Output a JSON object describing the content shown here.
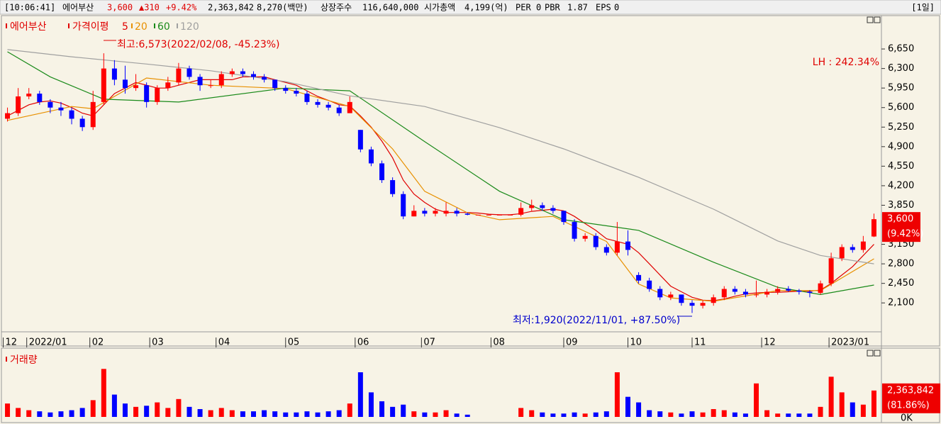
{
  "header": {
    "items": [
      "[10:06:41]",
      "에어부산",
      "3,600",
      "▲310",
      "+9.42%",
      "2,363,842",
      "8,270(백만)",
      "상장주수",
      "116,640,000",
      "시가총액",
      "4,199(억)",
      "PER",
      "0",
      "PBR",
      "1.87",
      "EPS",
      "0"
    ],
    "period": "[1일]"
  },
  "chart_data": [
    {
      "type": "candlestick",
      "title": "에어부산",
      "ma_title": "가격이평",
      "xlim": [
        -0.5,
        81.5
      ],
      "xticks": [
        {
          "value": -0.4,
          "label": "12"
        },
        {
          "value": 1.8,
          "label": "2022/01"
        },
        {
          "value": 7.7,
          "label": "02"
        },
        {
          "value": 13.3,
          "label": "03"
        },
        {
          "value": 19.5,
          "label": "04"
        },
        {
          "value": 26.0,
          "label": "05"
        },
        {
          "value": 32.5,
          "label": "06"
        },
        {
          "value": 38.7,
          "label": "07"
        },
        {
          "value": 45.2,
          "label": "08"
        },
        {
          "value": 52.0,
          "label": "09"
        },
        {
          "value": 58.0,
          "label": "10"
        },
        {
          "value": 64.0,
          "label": "11"
        },
        {
          "value": 70.5,
          "label": "12"
        },
        {
          "value": 76.8,
          "label": "2023/01"
        }
      ],
      "ylim": [
        1620,
        7210
      ],
      "yticks": [
        {
          "value": 2100,
          "label": "2,100"
        },
        {
          "value": 2450,
          "label": "2,450"
        },
        {
          "value": 2800,
          "label": "2,800"
        },
        {
          "value": 3150,
          "label": "3,150"
        },
        {
          "value": 3850,
          "label": "3,850"
        },
        {
          "value": 4200,
          "label": "4,200"
        },
        {
          "value": 4550,
          "label": "4,550"
        },
        {
          "value": 4900,
          "label": "4,900"
        },
        {
          "value": 5250,
          "label": "5,250"
        },
        {
          "value": 5600,
          "label": "5,600"
        },
        {
          "value": 5950,
          "label": "5,950"
        },
        {
          "value": 6300,
          "label": "6,300"
        },
        {
          "value": 6650,
          "label": "6,650"
        }
      ],
      "grid": false,
      "up_color": "#ff0000",
      "down_color": "#0000ff",
      "ohlc": [
        [
          5400,
          5600,
          5350,
          5500
        ],
        [
          5500,
          5950,
          5450,
          5800
        ],
        [
          5800,
          5950,
          5750,
          5850
        ],
        [
          5850,
          5900,
          5650,
          5700
        ],
        [
          5700,
          5750,
          5500,
          5600
        ],
        [
          5600,
          5700,
          5450,
          5550
        ],
        [
          5550,
          5600,
          5300,
          5400
        ],
        [
          5400,
          5450,
          5180,
          5250
        ],
        [
          5250,
          5900,
          5200,
          5700
        ],
        [
          5700,
          6573,
          5650,
          6300
        ],
        [
          6300,
          6450,
          6000,
          6100
        ],
        [
          6100,
          6350,
          5850,
          5950
        ],
        [
          5950,
          6200,
          5900,
          6000
        ],
        [
          6000,
          6050,
          5600,
          5700
        ],
        [
          5700,
          6000,
          5650,
          5950
        ],
        [
          5950,
          6150,
          5900,
          6050
        ],
        [
          6050,
          6400,
          6000,
          6300
        ],
        [
          6300,
          6350,
          6100,
          6150
        ],
        [
          6150,
          6200,
          5900,
          6000
        ],
        [
          6000,
          6100,
          5950,
          6000
        ],
        [
          6000,
          6250,
          5950,
          6200
        ],
        [
          6200,
          6300,
          6150,
          6250
        ],
        [
          6250,
          6300,
          6150,
          6200
        ],
        [
          6200,
          6250,
          6100,
          6150
        ],
        [
          6150,
          6200,
          6050,
          6100
        ],
        [
          6100,
          6100,
          5900,
          5950
        ],
        [
          5950,
          6000,
          5850,
          5900
        ],
        [
          5900,
          5950,
          5800,
          5850
        ],
        [
          5850,
          5900,
          5650,
          5700
        ],
        [
          5700,
          5750,
          5600,
          5650
        ],
        [
          5650,
          5700,
          5550,
          5600
        ],
        [
          5600,
          5650,
          5450,
          5500
        ],
        [
          5500,
          5800,
          5500,
          5700
        ],
        [
          5200,
          5200,
          4800,
          4850
        ],
        [
          4850,
          4900,
          4550,
          4600
        ],
        [
          4600,
          4650,
          4250,
          4300
        ],
        [
          4300,
          4350,
          4000,
          4050
        ],
        [
          4050,
          4100,
          3600,
          3650
        ],
        [
          3650,
          3850,
          3650,
          3750
        ],
        [
          3750,
          3800,
          3650,
          3700
        ],
        [
          3700,
          3800,
          3650,
          3750
        ],
        [
          3700,
          3900,
          3650,
          3750
        ],
        [
          3750,
          3800,
          3650,
          3700
        ],
        [
          3700,
          3720,
          3670,
          3680
        ],
        [
          3680,
          3680,
          3680,
          3680
        ],
        [
          3680,
          3680,
          3680,
          3680
        ],
        [
          3680,
          3680,
          3680,
          3680
        ],
        [
          3680,
          3680,
          3680,
          3680
        ],
        [
          3680,
          3900,
          3650,
          3800
        ],
        [
          3800,
          3950,
          3750,
          3850
        ],
        [
          3850,
          3900,
          3750,
          3800
        ],
        [
          3800,
          3850,
          3700,
          3750
        ],
        [
          3750,
          3750,
          3500,
          3550
        ],
        [
          3550,
          3600,
          3200,
          3250
        ],
        [
          3250,
          3350,
          3200,
          3300
        ],
        [
          3300,
          3350,
          3050,
          3100
        ],
        [
          3100,
          3150,
          2950,
          3000
        ],
        [
          3000,
          3550,
          2950,
          3200
        ],
        [
          3200,
          3400,
          2950,
          3050
        ],
        [
          2600,
          2650,
          2450,
          2500
        ],
        [
          2500,
          2550,
          2300,
          2350
        ],
        [
          2350,
          2400,
          2150,
          2200
        ],
        [
          2200,
          2300,
          2150,
          2250
        ],
        [
          2250,
          2250,
          2050,
          2100
        ],
        [
          2100,
          2150,
          1920,
          2050
        ],
        [
          2050,
          2150,
          2000,
          2100
        ],
        [
          2100,
          2250,
          2050,
          2200
        ],
        [
          2200,
          2400,
          2150,
          2350
        ],
        [
          2350,
          2400,
          2250,
          2300
        ],
        [
          2300,
          2350,
          2200,
          2250
        ],
        [
          2250,
          2500,
          2200,
          2250
        ],
        [
          2250,
          2350,
          2200,
          2300
        ],
        [
          2300,
          2400,
          2250,
          2350
        ],
        [
          2350,
          2400,
          2300,
          2320
        ],
        [
          2320,
          2350,
          2250,
          2300
        ],
        [
          2300,
          2330,
          2200,
          2280
        ],
        [
          2280,
          2500,
          2250,
          2450
        ],
        [
          2450,
          3000,
          2400,
          2900
        ],
        [
          2900,
          3150,
          2850,
          3100
        ],
        [
          3100,
          3150,
          3000,
          3050
        ],
        [
          3050,
          3300,
          3000,
          3200
        ],
        [
          3290,
          3700,
          3280,
          3600
        ]
      ],
      "series": [
        {
          "name": "5",
          "color": "#e00000",
          "x": [
            0,
            1,
            2,
            3,
            4,
            5,
            6,
            7,
            8,
            9,
            10,
            11,
            12,
            13,
            14,
            15,
            16,
            17,
            18,
            19,
            20,
            21,
            22,
            23,
            24,
            25,
            26,
            27,
            28,
            29,
            30,
            31,
            32,
            33,
            34,
            35,
            36,
            37,
            38,
            39,
            40,
            41,
            42,
            43,
            44,
            45,
            46,
            47,
            48,
            49,
            50,
            51,
            52,
            53,
            54,
            55,
            56,
            57,
            58,
            59,
            60,
            61,
            62,
            63,
            64,
            65,
            66,
            67,
            68,
            69,
            70,
            71,
            72,
            73,
            74,
            75,
            76,
            77,
            78,
            79,
            80,
            81
          ],
          "values": [
            5450,
            5550,
            5650,
            5700,
            5720,
            5680,
            5600,
            5500,
            5450,
            5650,
            5850,
            5950,
            6050,
            6000,
            5950,
            5950,
            6000,
            6050,
            6100,
            6100,
            6100,
            6100,
            6150,
            6150,
            6150,
            6100,
            6050,
            6000,
            5900,
            5800,
            5730,
            5650,
            5630,
            5450,
            5250,
            5000,
            4700,
            4300,
            4050,
            3900,
            3780,
            3720,
            3720,
            3720,
            3710,
            3690,
            3680,
            3680,
            3700,
            3740,
            3760,
            3780,
            3750,
            3650,
            3520,
            3400,
            3250,
            3200,
            3150,
            3000,
            2800,
            2600,
            2400,
            2300,
            2200,
            2150,
            2140,
            2170,
            2220,
            2260,
            2280,
            2290,
            2290,
            2300,
            2310,
            2310,
            2330,
            2450,
            2600,
            2750,
            2950,
            3150
          ]
        },
        {
          "name": "20",
          "color": "#e89000",
          "x": [
            0,
            6,
            8,
            13,
            19,
            26,
            32,
            36,
            39,
            43,
            46,
            51,
            56,
            59,
            62,
            66,
            72,
            76,
            81
          ],
          "values": [
            5370,
            5620,
            5580,
            6130,
            6000,
            5940,
            5620,
            4860,
            4100,
            3715,
            3590,
            3650,
            3200,
            2440,
            2190,
            2130,
            2320,
            2320,
            2890
          ]
        },
        {
          "name": "60",
          "color": "#1a8a1a",
          "x": [
            0,
            4,
            9,
            16,
            26,
            32,
            39,
            46,
            52,
            59,
            66,
            72,
            76,
            81
          ],
          "values": [
            6600,
            6150,
            5750,
            5700,
            5950,
            5900,
            4990,
            4100,
            3590,
            3400,
            2830,
            2380,
            2250,
            2420
          ]
        },
        {
          "name": "120",
          "color": "#a0a0a0",
          "x": [
            0,
            6,
            13,
            19,
            26,
            32,
            39,
            46,
            52,
            59,
            66,
            72,
            76,
            81
          ],
          "values": [
            6640,
            6510,
            6380,
            6260,
            6065,
            5810,
            5620,
            5240,
            4860,
            4350,
            3780,
            3210,
            2950,
            2800
          ]
        }
      ],
      "annotations": [
        "최고:6,573(2022/02/08, -45.23%)",
        "최저:1,920(2022/11/01, +87.50%)",
        "LH : 242.34%"
      ],
      "price_box": {
        "value": 3600,
        "label": "3,600",
        "change_label": "(9.42%)"
      }
    },
    {
      "type": "bar",
      "title": "거래량",
      "xlim": [
        -0.5,
        81.5
      ],
      "ylim": [
        0,
        6100000
      ],
      "yticks": [
        {
          "value": 0,
          "label": "0K"
        }
      ],
      "values": [
        1200000,
        800000,
        600000,
        500000,
        400000,
        500000,
        600000,
        800000,
        1500000,
        4300000,
        2000000,
        1200000,
        900000,
        1000000,
        1300000,
        800000,
        1600000,
        900000,
        700000,
        600000,
        800000,
        600000,
        500000,
        500000,
        600000,
        500000,
        400000,
        400000,
        500000,
        400000,
        500000,
        600000,
        1200000,
        4000000,
        2200000,
        1400000,
        900000,
        1100000,
        500000,
        400000,
        400000,
        600000,
        300000,
        200000,
        0,
        0,
        0,
        0,
        800000,
        600000,
        400000,
        300000,
        300000,
        400000,
        300000,
        400000,
        500000,
        4000000,
        1800000,
        1300000,
        600000,
        500000,
        400000,
        300000,
        500000,
        400000,
        700000,
        600000,
        400000,
        300000,
        3000000,
        600000,
        300000,
        300000,
        300000,
        300000,
        900000,
        3600000,
        2200000,
        1300000,
        1100000,
        2363842
      ],
      "volume_box": {
        "value": 2363842,
        "label": "2,363,842",
        "change_label": "(81.86%)"
      }
    }
  ]
}
